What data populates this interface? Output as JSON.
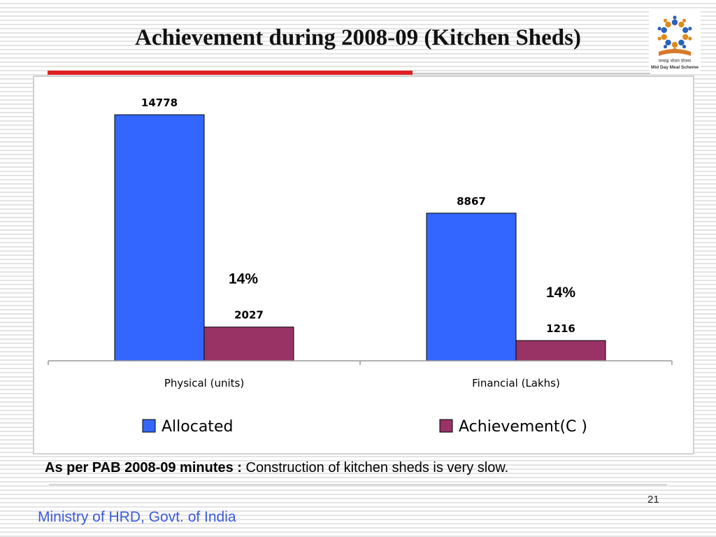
{
  "slide": {
    "title": "Achievement during 2008-09 (Kitchen Sheds)",
    "note_bold": "As per PAB 2008-09 minutes :",
    "note_text": "Construction of kitchen sheds is very slow.",
    "page_number": "21",
    "footer": "Ministry of HRD, Govt. of India"
  },
  "logo": {
    "icon": "mid-day-meal-scheme-logo",
    "caption_hindi": "मध्याह्न भोजन योजना",
    "caption_english": "Mid Day Meal Scheme"
  },
  "chart_data": {
    "type": "bar",
    "categories": [
      "Physical (units)",
      "Financial (Lakhs)"
    ],
    "series": [
      {
        "name": "Allocated",
        "values": [
          14778,
          8867
        ],
        "color": "#3366ff"
      },
      {
        "name": "Achievement(C )",
        "values": [
          2027,
          1216
        ],
        "color": "#993366"
      }
    ],
    "percent_labels": [
      "14%",
      "14%"
    ],
    "ylim": [
      0,
      16000
    ],
    "grid": false,
    "legend": "bottom"
  }
}
